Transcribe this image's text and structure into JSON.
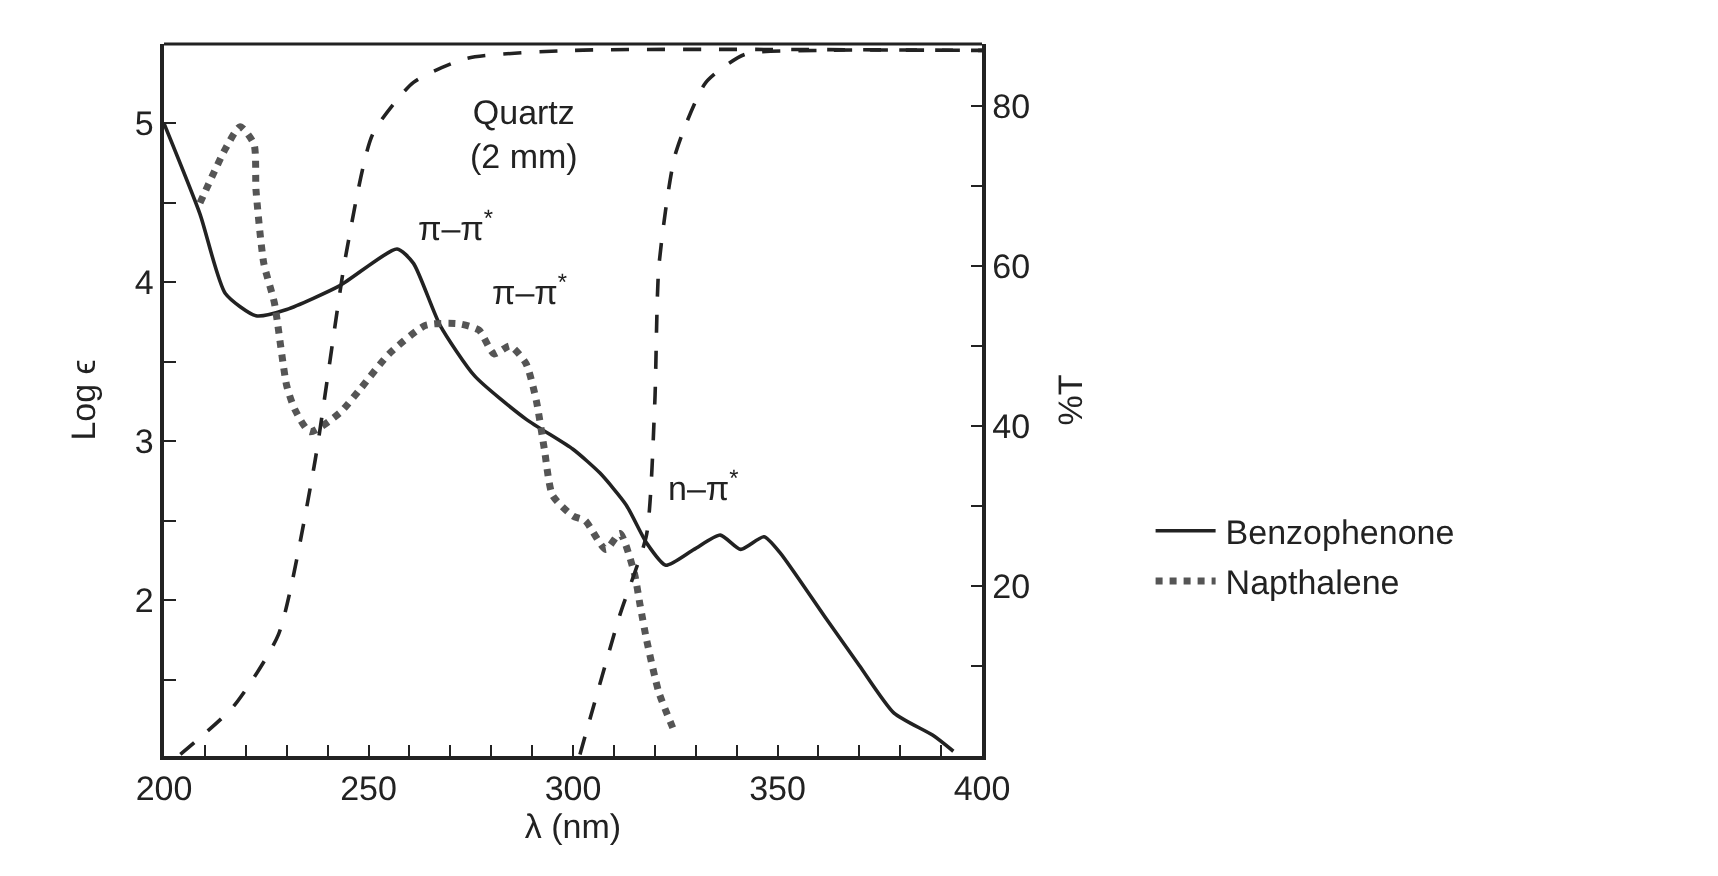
{
  "chart_data": {
    "type": "line",
    "xlabel": "λ (nm)",
    "ylabel": "Log ϵ",
    "y2label": "%T",
    "xlim": [
      200,
      400
    ],
    "xticks": [
      200,
      {
        "value": 210,
        "label": null
      },
      {
        "value": 220,
        "label": null
      },
      {
        "value": 230,
        "label": null
      },
      {
        "value": 240,
        "label": null
      },
      250,
      {
        "value": 260,
        "label": null
      },
      {
        "value": 270,
        "label": null
      },
      {
        "value": 280,
        "label": null
      },
      {
        "value": 290,
        "label": null
      },
      300,
      {
        "value": 310,
        "label": null
      },
      {
        "value": 320,
        "label": null
      },
      {
        "value": 330,
        "label": null
      },
      {
        "value": 340,
        "label": null
      },
      350,
      {
        "value": 360,
        "label": null
      },
      {
        "value": 370,
        "label": null
      },
      {
        "value": 380,
        "label": null
      },
      {
        "value": 390,
        "label": null
      },
      400
    ],
    "ylim": [
      1.02,
      5.5
    ],
    "yticks": [
      {
        "value": 1.5,
        "label": null
      },
      2,
      {
        "value": 2.5,
        "label": null
      },
      3,
      {
        "value": 3.5,
        "label": null
      },
      4,
      {
        "value": 4.5,
        "label": null
      },
      5
    ],
    "y2lim": [
      -1.2,
      87.8
    ],
    "y2ticks": [
      {
        "value": 10,
        "label": null
      },
      20,
      {
        "value": 30,
        "label": null
      },
      40,
      {
        "value": 50,
        "label": null
      },
      60,
      {
        "value": 70,
        "label": null
      },
      80
    ],
    "legend": "right",
    "marker": "none",
    "series": [
      {
        "name": "Benzophenone",
        "color": "#222222",
        "line_style": "solid",
        "x": [
          200,
          208.8,
          215,
          222.5,
          230,
          243,
          257,
          261,
          267.5,
          276,
          288.5,
          300,
          306.6,
          313,
          318,
          322.7,
          329.6,
          336,
          341,
          346.7,
          350.6,
          362,
          370,
          378.5,
          388,
          393
        ],
        "values": [
          5.0,
          4.43,
          3.93,
          3.79,
          3.83,
          3.98,
          4.21,
          4.12,
          3.73,
          3.41,
          3.14,
          2.95,
          2.8,
          2.6,
          2.36,
          2.22,
          2.32,
          2.41,
          2.32,
          2.4,
          2.3,
          1.88,
          1.59,
          1.29,
          1.15,
          1.05
        ]
      },
      {
        "name": "Napthalene",
        "color": "#555555",
        "line_style": "dotted",
        "x": [
          208.8,
          215,
          218.6,
          222,
          222.5,
          224.4,
          227,
          230,
          232,
          235.7,
          243,
          248,
          255,
          264,
          272,
          277,
          280.7,
          284.6,
          288.5,
          291,
          293,
          295,
          300,
          303,
          308,
          311.5,
          315,
          316.4,
          318,
          321,
          325
        ],
        "values": [
          4.5,
          4.84,
          4.98,
          4.87,
          4.58,
          4.12,
          3.87,
          3.35,
          3.2,
          3.06,
          3.18,
          3.33,
          3.55,
          3.73,
          3.74,
          3.7,
          3.55,
          3.6,
          3.49,
          3.26,
          2.95,
          2.66,
          2.53,
          2.5,
          2.32,
          2.42,
          2.17,
          1.97,
          1.75,
          1.42,
          1.16
        ]
      },
      {
        "color": "#222222",
        "line_style": "dashed",
        "axis": "y2",
        "x": [
          204,
          217,
          228,
          236.7,
          244.5,
          251,
          261,
          274,
          300,
          400
        ],
        "values": [
          -1,
          5,
          14,
          35,
          61.5,
          76.5,
          83,
          86,
          87,
          87
        ]
      },
      {
        "color": "#222222",
        "line_style": "dashed",
        "axis": "y2",
        "x": [
          301.7,
          311.5,
          318,
          320,
          321,
          325,
          332.5,
          342,
          360,
          400
        ],
        "values": [
          -1,
          16.5,
          26.5,
          43,
          60,
          74,
          83,
          86.5,
          87,
          87
        ]
      }
    ],
    "annotations": [
      "Quartz\n(2 mm)",
      "π–π$^{*}$",
      "π–π$^{*}$",
      "n–π$^{*}$"
    ]
  }
}
